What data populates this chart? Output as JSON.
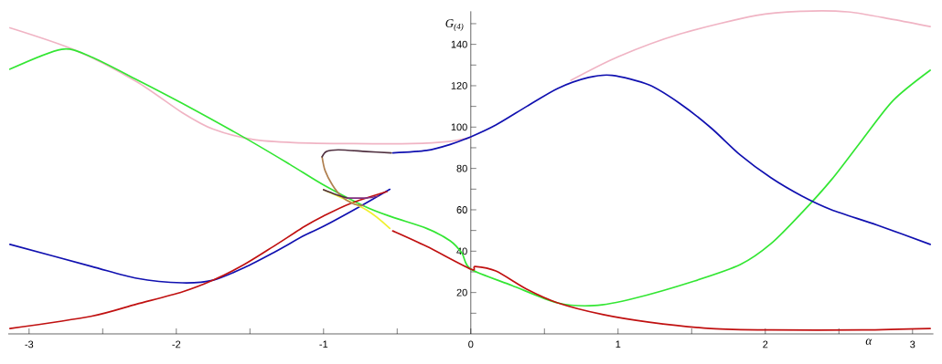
{
  "chart_data": {
    "type": "line",
    "xlabel": "α",
    "ylabel": "G$_{(4)}$",
    "xlim": [
      -3.1416,
      3.1416
    ],
    "ylim": [
      0,
      156
    ],
    "xticks": [
      -3,
      {
        "value": -2.5,
        "label": null
      },
      -2,
      {
        "value": -1.5,
        "label": null
      },
      -1,
      {
        "value": -0.5,
        "label": null
      },
      0,
      {
        "value": 0.5,
        "label": null
      },
      1,
      {
        "value": 1.5,
        "label": null
      },
      2,
      {
        "value": 2.5,
        "label": null
      },
      3
    ],
    "yticks": [
      {
        "value": 10,
        "label": null
      },
      20,
      {
        "value": 30,
        "label": null
      },
      40,
      {
        "value": 50,
        "label": null
      },
      60,
      {
        "value": 70,
        "label": null
      },
      80,
      {
        "value": 90,
        "label": null
      },
      100,
      {
        "value": 110,
        "label": null
      },
      120,
      {
        "value": 130,
        "label": null
      },
      140,
      {
        "value": 150,
        "label": null
      }
    ],
    "series": [
      {
        "color": "#f0b4c4",
        "x": [
          -3.13,
          -2.68,
          -2.27,
          -1.96,
          -1.75,
          -1.48,
          -1.2,
          -0.8,
          -0.4,
          -0.15,
          0
        ],
        "values": [
          148,
          137,
          122,
          107,
          99,
          94,
          92.5,
          92,
          92,
          93,
          95
        ]
      },
      {
        "color": "#f0b4c4",
        "x": [
          0.68,
          1.0,
          1.42,
          1.94,
          2.25,
          2.56,
          2.87,
          3.12
        ],
        "values": [
          122.6,
          134,
          145,
          154,
          156,
          155.7,
          152,
          148.6
        ]
      },
      {
        "color": "#33e633",
        "x": [
          -3.13,
          -2.78,
          -2.58,
          -2.27,
          -1.96,
          -1.54,
          -1.23,
          -1.0,
          -0.71,
          -0.53,
          -0.3,
          -0.14,
          -0.06,
          0,
          0.28,
          0.59,
          0.84,
          1.11,
          1.52,
          1.83,
          2.04,
          2.25,
          2.45,
          2.66,
          2.87,
          3.12
        ],
        "values": [
          128,
          137.6,
          134,
          123,
          111.5,
          95,
          82,
          72,
          61.3,
          56.4,
          51,
          45,
          39,
          31.3,
          23.4,
          15,
          13.7,
          17.2,
          25.6,
          33.5,
          43.7,
          58.7,
          74.6,
          94,
          113,
          127.5
        ]
      },
      {
        "color": "#1010b0",
        "x": [
          -3.13,
          -2.58,
          -2.27,
          -1.96,
          -1.75,
          -1.54,
          -1.34,
          -1.13,
          -1.0,
          -0.76,
          -0.55
        ],
        "values": [
          43.3,
          32.7,
          26.9,
          24.7,
          26,
          32,
          39.3,
          47.6,
          52,
          61.3,
          69.9
        ]
      },
      {
        "color": "#1010b0",
        "x": [
          -0.53,
          -0.3,
          -0.14,
          0,
          0.17,
          0.38,
          0.59,
          0.8,
          0.96,
          1.21,
          1.42,
          1.63,
          1.83,
          2.04,
          2.25,
          2.45,
          2.76,
          3.12
        ],
        "values": [
          87.5,
          88.7,
          91.6,
          95.3,
          101,
          110,
          118.7,
          124,
          125,
          120.4,
          111.4,
          99.7,
          86.5,
          75.4,
          66.6,
          60,
          52.6,
          43.3
        ]
      },
      {
        "color": "#c01010",
        "x": [
          -3.13,
          -2.58,
          -2.27,
          -1.96,
          -1.75,
          -1.54,
          -1.34,
          -1.13,
          -1.0,
          -0.82,
          -0.57
        ],
        "values": [
          2.6,
          8.5,
          14.4,
          20.3,
          26,
          33.5,
          42.3,
          51.9,
          57,
          63,
          68.8
        ]
      },
      {
        "color": "#c01010",
        "x": [
          -0.53,
          -0.3,
          0,
          0.03,
          0.17,
          0.38,
          0.59,
          0.9,
          1.21,
          1.63,
          2.04,
          2.66,
          3.12
        ],
        "values": [
          49.8,
          42.3,
          31.3,
          32.6,
          30.4,
          21.6,
          15,
          9.3,
          5.7,
          2.6,
          1.9,
          1.9,
          2.6
        ]
      },
      {
        "color": "#f0f030",
        "x": [
          -1.0,
          -0.71,
          -0.55
        ],
        "values": [
          69.7,
          60,
          51
        ]
      },
      {
        "color": "#b08050",
        "x": [
          -1.01,
          -0.99,
          -0.94,
          -0.88,
          -0.8,
          -0.73
        ],
        "values": [
          85.6,
          79,
          72,
          66.6,
          63,
          62
        ]
      },
      {
        "color": "#503040",
        "x": [
          -1.01,
          -0.98,
          -0.9,
          -0.71,
          -0.54
        ],
        "values": [
          85.6,
          88.2,
          89,
          88.2,
          87.5
        ]
      },
      {
        "color": "#503040",
        "x": [
          -1.0,
          -0.92,
          -0.84
        ],
        "values": [
          69.7,
          67.5,
          65.7
        ]
      },
      {
        "color": "#803080",
        "x": [
          -0.84,
          -0.71,
          -0.63
        ],
        "values": [
          65.7,
          65.7,
          66.6
        ]
      }
    ]
  }
}
